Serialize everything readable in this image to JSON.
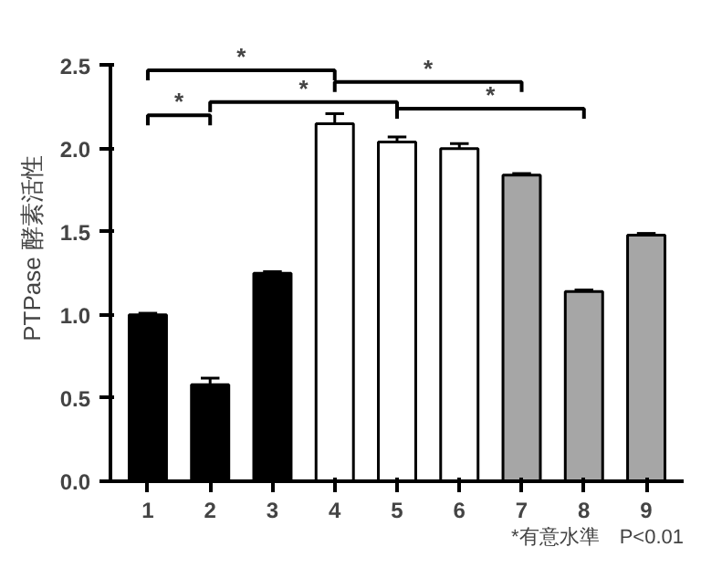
{
  "chart_data": {
    "type": "bar",
    "ylabel": "PTPase 酵素活性",
    "categories": [
      "1",
      "2",
      "3",
      "4",
      "5",
      "6",
      "7",
      "8",
      "9"
    ],
    "values": [
      1.0,
      0.58,
      1.25,
      2.15,
      2.04,
      2.0,
      1.84,
      1.14,
      1.48
    ],
    "errors": [
      0.01,
      0.04,
      0.01,
      0.06,
      0.03,
      0.03,
      0.01,
      0.01,
      0.01
    ],
    "colors": [
      "#000000",
      "#000000",
      "#000000",
      "#ffffff",
      "#ffffff",
      "#ffffff",
      "#a6a6a6",
      "#a6a6a6",
      "#a6a6a6"
    ],
    "ylim": [
      0,
      2.5
    ],
    "yticks": [
      {
        "value": 0,
        "label": "0.0"
      },
      {
        "value": 0.5,
        "label": "0.5"
      },
      {
        "value": 1,
        "label": "1.0"
      },
      {
        "value": 1.5,
        "label": "1.5"
      },
      {
        "value": 2,
        "label": "2.0"
      },
      {
        "value": 2.5,
        "label": "2.5"
      }
    ],
    "grid": false,
    "annotations": [
      "*",
      "*",
      "*",
      "*",
      "*",
      "*有意水準　P<0.01"
    ]
  }
}
